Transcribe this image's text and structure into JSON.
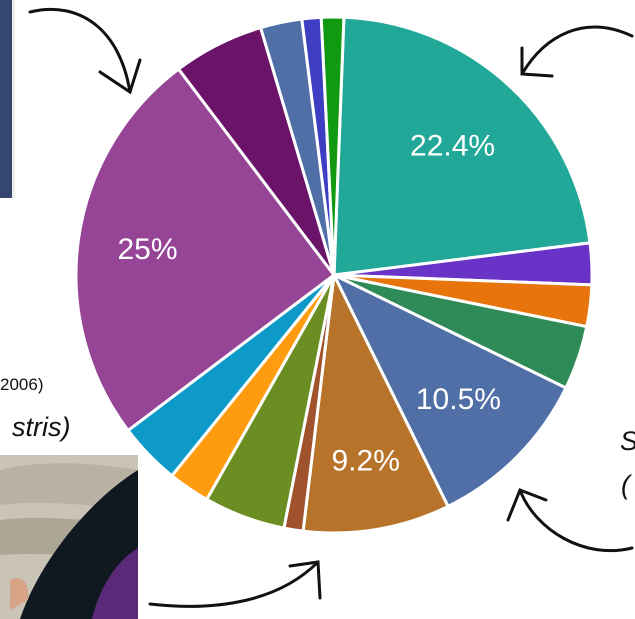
{
  "chart_data": {
    "type": "pie",
    "title": "",
    "slices": [
      {
        "value": 22.4,
        "color": "#22A898",
        "label": "22.4%"
      },
      {
        "value": 2.6,
        "color": "#6A33C8",
        "label": ""
      },
      {
        "value": 2.6,
        "color": "#E8750C",
        "label": ""
      },
      {
        "value": 4.0,
        "color": "#2E8B57",
        "label": ""
      },
      {
        "value": 10.5,
        "color": "#4F6FA6",
        "label": "10.5%"
      },
      {
        "value": 9.2,
        "color": "#B8732A",
        "label": "9.2%"
      },
      {
        "value": 1.2,
        "color": "#A0522D",
        "label": ""
      },
      {
        "value": 5.1,
        "color": "#6B8E23",
        "label": ""
      },
      {
        "value": 2.6,
        "color": "#FF9B0F",
        "label": ""
      },
      {
        "value": 3.9,
        "color": "#0E9AC9",
        "label": ""
      },
      {
        "value": 25.0,
        "color": "#964496",
        "label": "25%"
      },
      {
        "value": 5.7,
        "color": "#6A1368",
        "label": ""
      },
      {
        "value": 2.6,
        "color": "#4F6FA6",
        "label": ""
      },
      {
        "value": 1.2,
        "color": "#3E3EC2",
        "label": ""
      },
      {
        "value": 1.4,
        "color": "#119911",
        "label": ""
      }
    ]
  },
  "fragments": {
    "year_text": "2006)",
    "species_text": "stris)",
    "right_letter": "S",
    "right_paren": "("
  }
}
